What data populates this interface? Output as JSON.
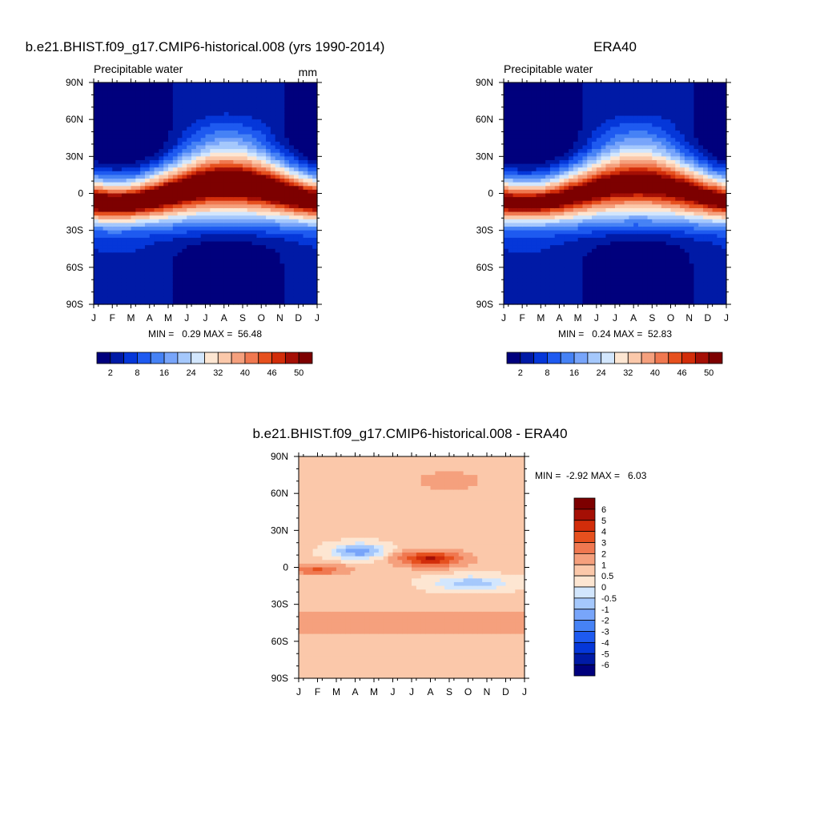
{
  "figure": {
    "left_title": "b.e21.BHIST.f09_g17.CMIP6-historical.008 (yrs 1990-2014)",
    "right_title": "ERA40",
    "diff_title": "b.e21.BHIST.f09_g17.CMIP6-historical.008 - ERA40"
  },
  "chart_data": [
    {
      "type": "heatmap",
      "subtitle": "Precipitable water",
      "units": "mm",
      "xlabel": "",
      "ylabel": "",
      "x_ticks": [
        "J",
        "F",
        "M",
        "A",
        "M",
        "J",
        "J",
        "A",
        "S",
        "O",
        "N",
        "D",
        "J"
      ],
      "y_ticks": [
        "90N",
        "60N",
        "30N",
        "0",
        "30S",
        "60S",
        "90S"
      ],
      "ylim": [
        -90,
        90
      ],
      "stats_text": "MIN =   0.29 MAX =  56.48",
      "min": 0.29,
      "max": 56.48,
      "colorbar": {
        "orientation": "horizontal",
        "levels": [
          2,
          5,
          8,
          12,
          16,
          20,
          24,
          28,
          32,
          36,
          40,
          43,
          46,
          48,
          50
        ],
        "labels": [
          "2",
          "8",
          "16",
          "24",
          "32",
          "40",
          "46",
          "50"
        ],
        "colors": [
          "#00007d",
          "#001aa6",
          "#0537d9",
          "#1e5af0",
          "#4682f5",
          "#78a5fa",
          "#a5c8fc",
          "#d2e6fd",
          "#fde6d2",
          "#fbc8aa",
          "#f5a07d",
          "#f07850",
          "#e6501e",
          "#d22d0a",
          "#a50f05",
          "#7d0000"
        ]
      },
      "grid": false
    },
    {
      "type": "heatmap",
      "subtitle": "Precipitable water",
      "xlabel": "",
      "ylabel": "",
      "x_ticks": [
        "J",
        "F",
        "M",
        "A",
        "M",
        "J",
        "J",
        "A",
        "S",
        "O",
        "N",
        "D",
        "J"
      ],
      "y_ticks": [
        "90N",
        "60N",
        "30N",
        "0",
        "30S",
        "60S",
        "90S"
      ],
      "ylim": [
        -90,
        90
      ],
      "stats_text": "MIN =   0.24 MAX =  52.83",
      "min": 0.24,
      "max": 52.83,
      "colorbar": {
        "orientation": "horizontal",
        "levels": [
          2,
          5,
          8,
          12,
          16,
          20,
          24,
          28,
          32,
          36,
          40,
          43,
          46,
          48,
          50
        ],
        "labels": [
          "2",
          "8",
          "16",
          "24",
          "32",
          "40",
          "46",
          "50"
        ],
        "colors": [
          "#00007d",
          "#001aa6",
          "#0537d9",
          "#1e5af0",
          "#4682f5",
          "#78a5fa",
          "#a5c8fc",
          "#d2e6fd",
          "#fde6d2",
          "#fbc8aa",
          "#f5a07d",
          "#f07850",
          "#e6501e",
          "#d22d0a",
          "#a50f05",
          "#7d0000"
        ]
      },
      "grid": false
    },
    {
      "type": "heatmap",
      "xlabel": "",
      "ylabel": "",
      "x_ticks": [
        "J",
        "F",
        "M",
        "A",
        "M",
        "J",
        "J",
        "A",
        "S",
        "O",
        "N",
        "D",
        "J"
      ],
      "y_ticks": [
        "90N",
        "60N",
        "30N",
        "0",
        "30S",
        "60S",
        "90S"
      ],
      "ylim": [
        -90,
        90
      ],
      "stats_text": "MIN =  -2.92 MAX =   6.03",
      "min": -2.92,
      "max": 6.03,
      "colorbar": {
        "orientation": "vertical",
        "levels": [
          -6,
          -5,
          -4,
          -3,
          -2,
          -1,
          -0.5,
          0,
          0.5,
          1,
          2,
          3,
          4,
          5,
          6
        ],
        "labels": [
          "6",
          "5",
          "4",
          "3",
          "2",
          "1",
          "0.5",
          "0",
          "-0.5",
          "-1",
          "-2",
          "-3",
          "-4",
          "-5",
          "-6"
        ],
        "colors": [
          "#00007d",
          "#001aa6",
          "#0537d9",
          "#1e5af0",
          "#4682f5",
          "#78a5fa",
          "#a5c8fc",
          "#d2e6fd",
          "#fde6d2",
          "#fbc8aa",
          "#f5a07d",
          "#f07850",
          "#e6501e",
          "#d22d0a",
          "#a50f05",
          "#7d0000"
        ]
      },
      "grid": false
    }
  ]
}
